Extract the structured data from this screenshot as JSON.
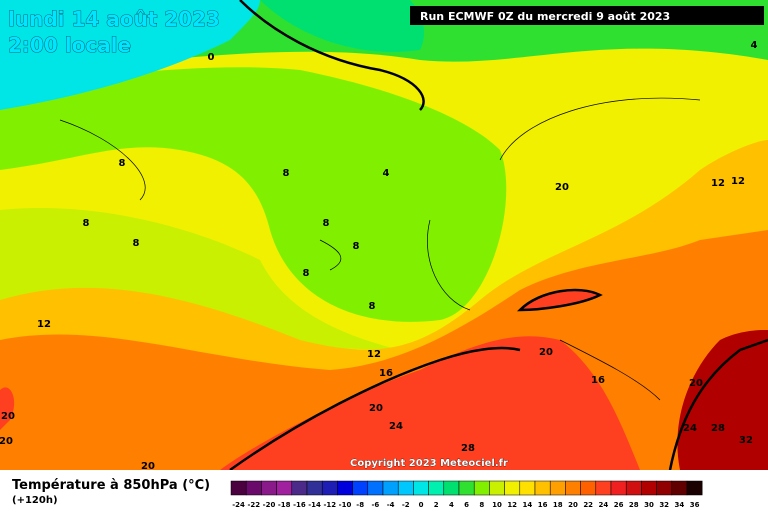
{
  "header": {
    "date": "lundi 14 août 2023",
    "time": "2:00 locale",
    "run": "Run ECMWF 0Z du mercredi 9 août 2023"
  },
  "copyright": "Copyright 2023 Meteociel.fr",
  "legend": {
    "title": "Température à 850hPa (°C)",
    "lead": "(+120h)",
    "ticks": [
      -24,
      -22,
      -20,
      -18,
      -16,
      -14,
      -12,
      -10,
      -8,
      -6,
      -4,
      -2,
      0,
      2,
      4,
      6,
      8,
      10,
      12,
      14,
      16,
      18,
      20,
      22,
      24,
      26,
      28,
      30,
      32,
      34,
      36
    ],
    "colors": [
      "#4b0040",
      "#6a0a6a",
      "#8a1a8a",
      "#a020a0",
      "#4b2a8a",
      "#303098",
      "#1e1eb4",
      "#0000dc",
      "#0040ff",
      "#0070ff",
      "#00a0ff",
      "#00c8ff",
      "#00e6e6",
      "#00f0b0",
      "#00e070",
      "#30e030",
      "#80f000",
      "#c8f000",
      "#f0f000",
      "#ffe000",
      "#ffc000",
      "#ffa000",
      "#ff8000",
      "#ff6000",
      "#ff4020",
      "#f02020",
      "#d01010",
      "#b00000",
      "#900000",
      "#600000",
      "#1a0000"
    ]
  },
  "contour_labels": [
    0,
    4,
    8,
    8,
    8,
    8,
    8,
    8,
    8,
    4,
    8,
    12,
    12,
    12,
    12,
    16,
    16,
    20,
    20,
    20,
    20,
    20,
    24,
    24,
    28,
    28,
    32,
    20,
    20
  ]
}
